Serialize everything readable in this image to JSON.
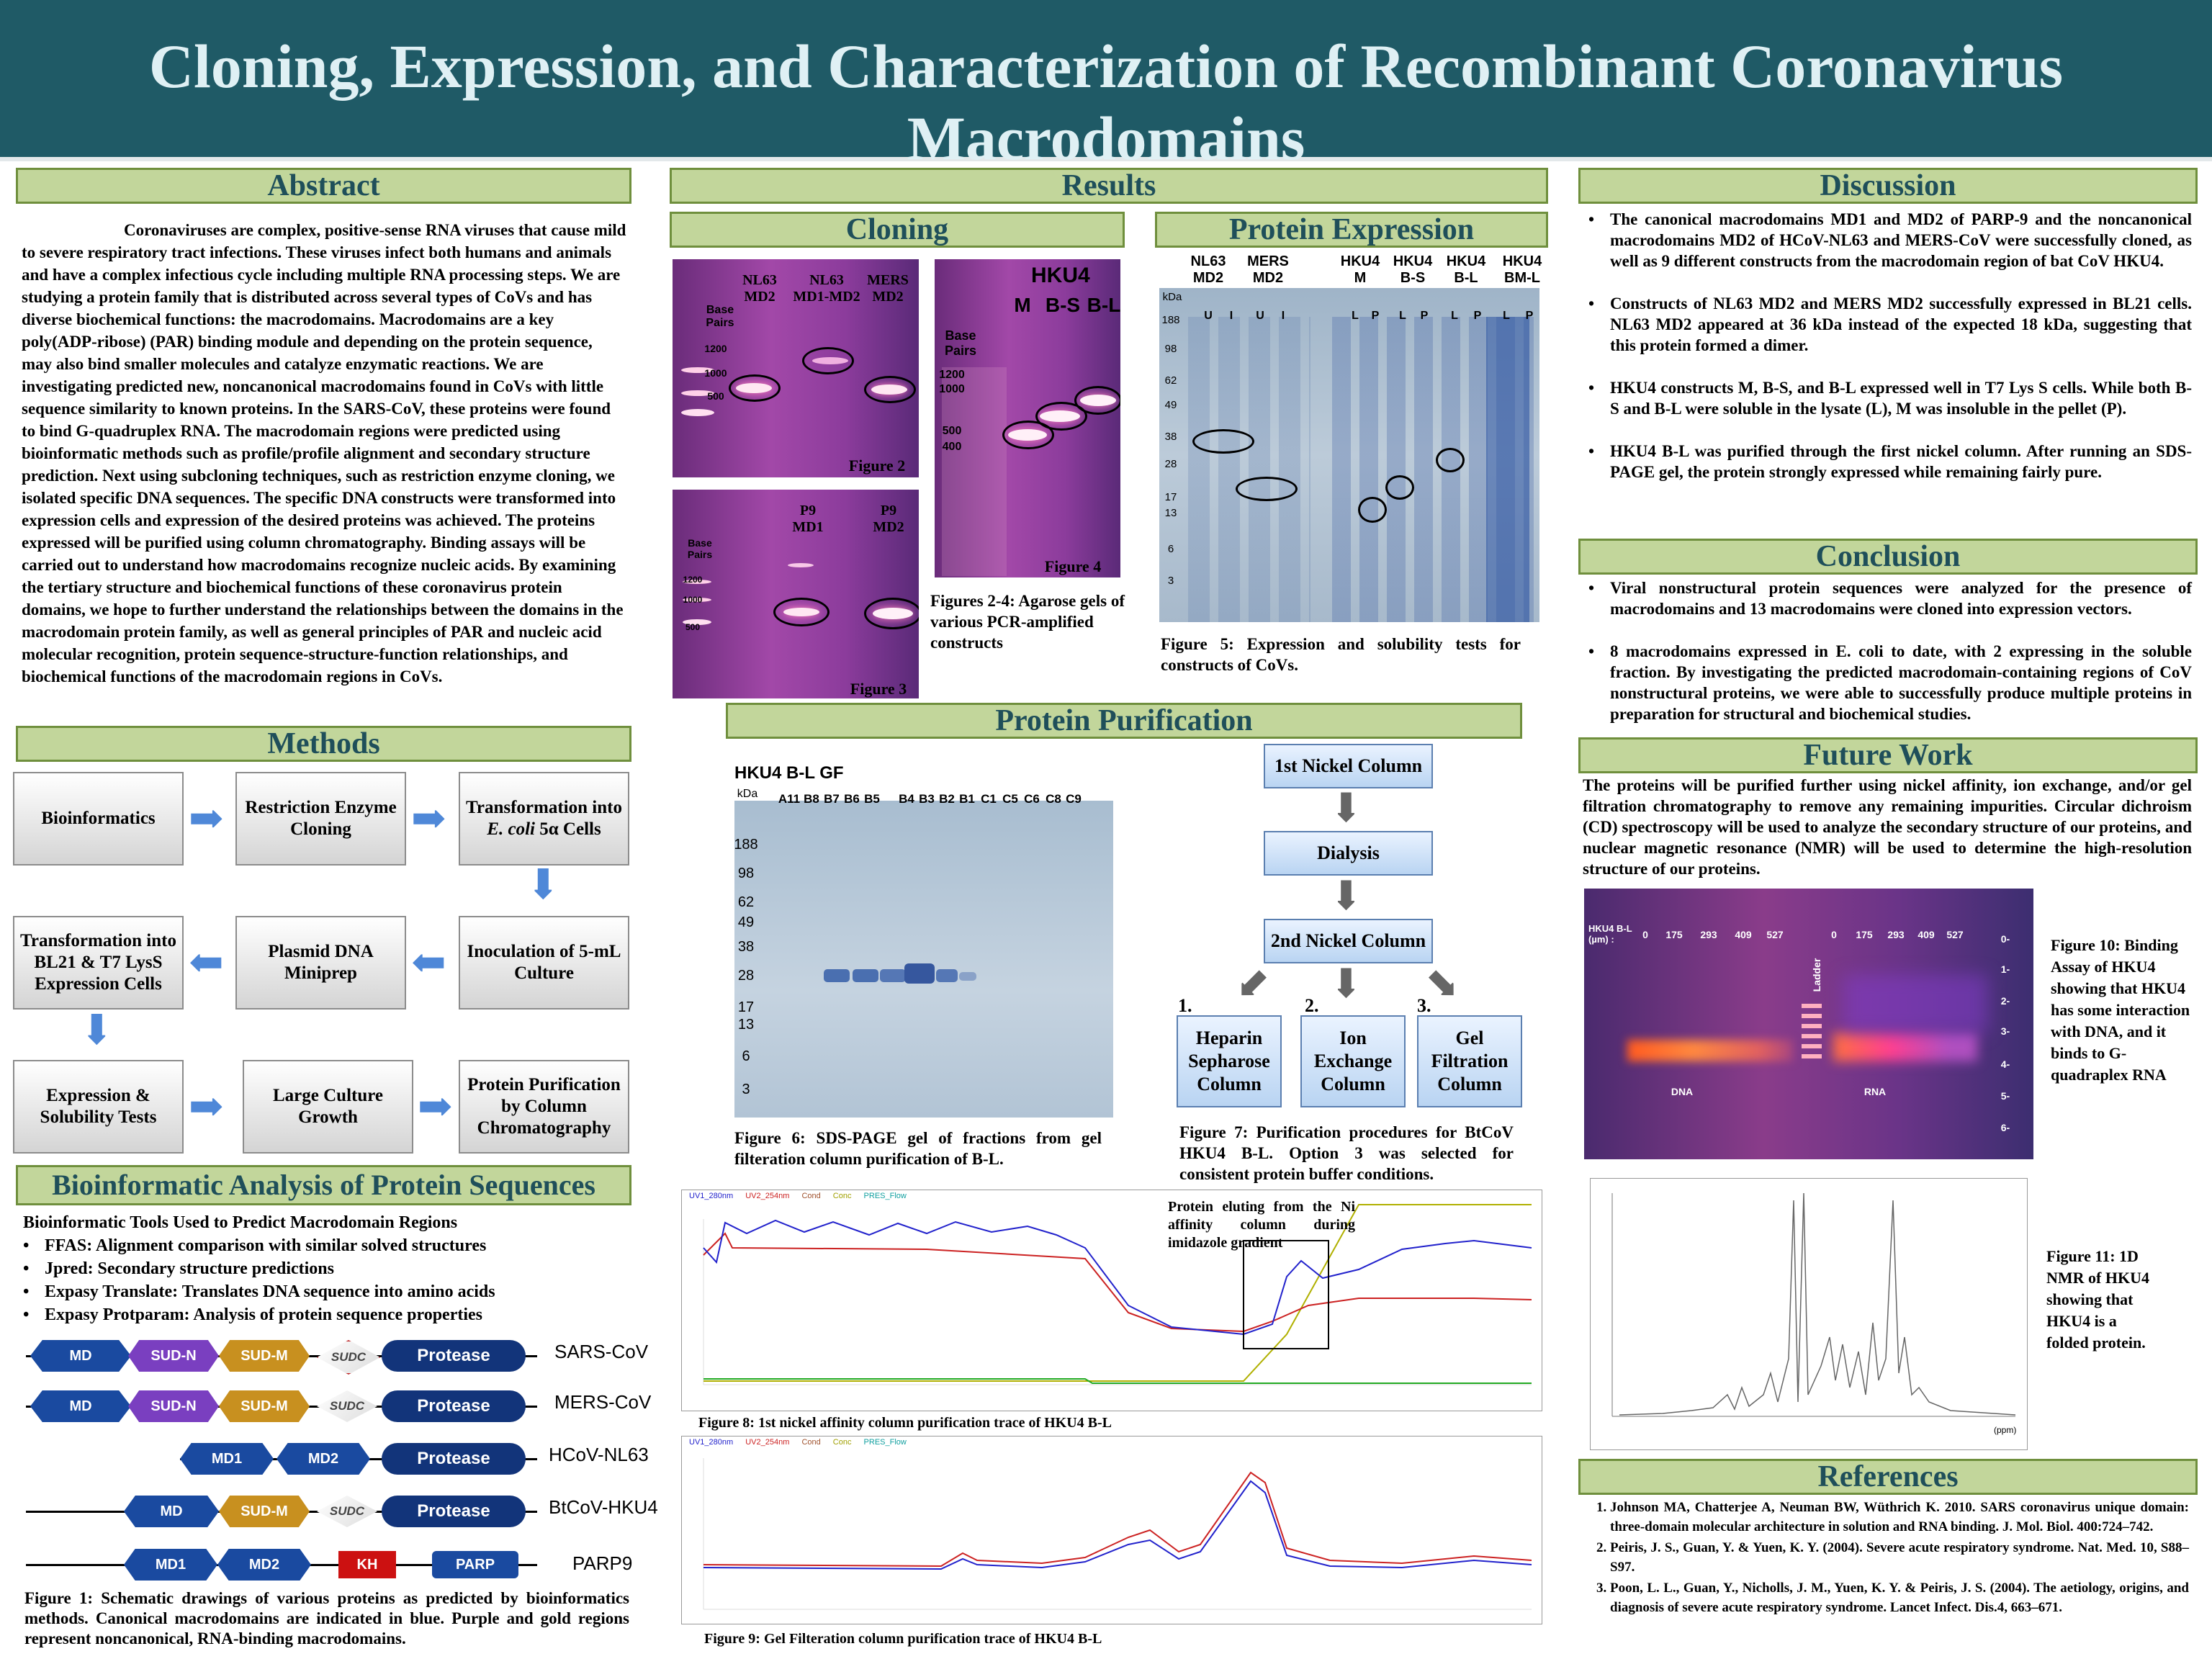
{
  "title": "Cloning, Expression, and Characterization of Recombinant Coronavirus Macrodomains",
  "headers": {
    "abstract": "Abstract",
    "methods": "Methods",
    "bioinfo": "Bioinformatic Analysis of Protein Sequences",
    "results": "Results",
    "cloning": "Cloning",
    "expression": "Protein Expression",
    "purification": "Protein Purification",
    "discussion": "Discussion",
    "conclusion": "Conclusion",
    "future": "Future Work",
    "references": "References"
  },
  "abstract_text": "Coronaviruses are complex, positive-sense RNA viruses that cause mild to severe respiratory tract infections.  These viruses infect both humans and animals and have a complex infectious cycle including multiple RNA processing steps.  We are studying a protein family that is distributed across several types of CoVs and has diverse biochemical functions: the macrodomains.  Macrodomains are a key poly(ADP-ribose) (PAR) binding module and depending on the protein sequence, may also bind smaller molecules and catalyze enzymatic reactions.  We are investigating predicted new, noncanonical macrodomains found in CoVs with little sequence similarity to known proteins.  In the SARS-CoV, these proteins were found to bind G-quadruplex RNA.  The macrodomain regions were predicted using bioinformatic methods such as profile/profile alignment and secondary structure prediction.  Next using subcloning techniques, such as restriction enzyme cloning, we isolated specific DNA sequences. The specific DNA constructs were transformed into expression cells and expression of the desired proteins was achieved. The proteins expressed will be purified using column chromatography. Binding assays will be carried out to understand how macrodomains recognize nucleic acids. By examining the tertiary structure and biochemical functions of these coronavirus protein domains, we hope to further understand the relationships between the domains in the macrodomain protein family, as well as general principles of PAR and nucleic acid molecular recognition, protein sequence-structure-function relationships, and biochemical functions of the macrodomain regions in CoVs.",
  "methods": {
    "bioinformatics": "Bioinformatics",
    "restriction": "Restriction Enzyme Cloning",
    "transformation_a": "Transformation into",
    "transformation_b": "E. coli",
    "transformation_c": "5α Cells",
    "inoculation": "Inoculation of 5-mL Culture",
    "miniprep": "Plasmid DNA Miniprep",
    "bl21": "Transformation into BL21 & T7 LysS Expression Cells",
    "expression": "Expression & Solubility Tests",
    "large": "Large Culture Growth",
    "purification": "Protein Purification by Column Chromatography"
  },
  "bioinfo": {
    "tools_title": "Bioinformatic Tools Used to Predict Macrodomain Regions",
    "tools": [
      "FFAS: Alignment comparison with similar solved structures",
      "Jpred: Secondary structure predictions",
      "Expasy Translate: Translates DNA sequence into amino acids",
      "Expasy Protparam: Analysis of protein sequence properties"
    ],
    "proteins": [
      "SARS-CoV",
      "MERS-CoV",
      "HCoV-NL63",
      "BtCoV-HKU4",
      "PARP9"
    ],
    "domains": {
      "md": "MD",
      "sud_n": "SUD-N",
      "sud_m": "SUD-M",
      "sudc": "SUDC",
      "protease": "Protease",
      "md1": "MD1",
      "md2": "MD2",
      "kh": "KH",
      "parp": "PARP"
    },
    "figure1": "Figure 1: Schematic drawings of various proteins as predicted by bioinformatics methods. Canonical macrodomains are indicated in blue. Purple and gold regions represent noncanonical, RNA-binding macrodomains."
  },
  "cloning": {
    "fig2_lanes": [
      "NL63 MD2",
      "NL63 MD1-MD2",
      "MERS MD2"
    ],
    "base_pairs": "Base Pairs",
    "ladder": [
      "1200",
      "1000",
      "500",
      "400"
    ],
    "fig2": "Figure 2",
    "fig3_lanes": [
      "P9 MD1",
      "P9 MD2"
    ],
    "fig3": "Figure 3",
    "fig4_title": "HKU4",
    "fig4_lanes": [
      "M",
      "B-S",
      "B-L"
    ],
    "fig4": "Figure 4",
    "caption": "Figures 2-4: Agarose gels of various PCR-amplified constructs"
  },
  "expression": {
    "groups": [
      "NL63 MD2",
      "MERS MD2",
      "HKU4 M",
      "HKU4 B-S",
      "HKU4 B-L",
      "HKU4 BM-L"
    ],
    "lane_codes": [
      "U",
      "I",
      "U",
      "I",
      "L",
      "P",
      "L",
      "P",
      "L",
      "P",
      "L",
      "P"
    ],
    "kda": "kDa",
    "markers": [
      "188",
      "98",
      "62",
      "49",
      "38",
      "28",
      "17",
      "13",
      "6",
      "3"
    ],
    "caption": "Figure 5: Expression and solubility tests for constructs of CoVs."
  },
  "purification": {
    "gel_title": "HKU4 B-L GF",
    "fractions": [
      "A11",
      "B8",
      "B7",
      "B6",
      "B5",
      "B4",
      "B3",
      "B2",
      "B1",
      "C1",
      "C5",
      "C6",
      "C8",
      "C9"
    ],
    "fig6": "Figure 6: SDS-PAGE gel of fractions from gel filteration column purification of B-L.",
    "step1": "1st Nickel Column",
    "dialysis": "Dialysis",
    "step2": "2nd Nickel Column",
    "opt1_num": "1.",
    "opt1": "Heparin Sepharose Column",
    "opt2_num": "2.",
    "opt2": "Ion Exchange Column",
    "opt3_num": "3.",
    "opt3": "Gel Filtration Column",
    "fig7": "Figure 7: Purification procedures for BtCoV HKU4 B-L.  Option 3 was selected for consistent protein buffer conditions.",
    "trace_note": "Protein eluting from the Ni affinity column during imidazole gradient",
    "fig8": "Figure 8: 1st nickel affinity column purification trace of HKU4 B-L",
    "fig9": "Figure 9: Gel Filteration column purification trace of HKU4 B-L",
    "legend": [
      "UV1_280nm",
      "UV2_254nm",
      "Cond",
      "Conc",
      "PRES_Flow"
    ]
  },
  "discussion": [
    "The canonical macrodomains MD1 and MD2 of PARP-9 and the noncanonical macrodomains MD2 of HCoV-NL63 and MERS-CoV were successfully cloned, as well as 9 different constructs from the macrodomain region of bat CoV HKU4.",
    "Constructs of NL63 MD2 and MERS MD2 successfully expressed in BL21 cells.  NL63 MD2 appeared at 36 kDa instead of the expected 18 kDa, suggesting that this protein formed a dimer.",
    "HKU4 constructs M, B-S, and B-L expressed well in T7 Lys S cells. While both B-S and B-L were soluble in the lysate (L), M was insoluble in the pellet (P).",
    "HKU4 B-L was purified through the first nickel column. After running an SDS-PAGE gel, the protein strongly expressed while remaining fairly pure."
  ],
  "conclusion": [
    "Viral nonstructural protein sequences were analyzed for the presence of macrodomains and 13 macrodomains were cloned into expression vectors.",
    "8 macrodomains expressed in E. coli to date, with 2 expressing in the soluble fraction. By investigating the predicted macrodomain-containing regions of CoV nonstructural proteins, we were able to successfully produce multiple proteins in preparation for structural and biochemical studies."
  ],
  "future_text": "The proteins will be purified further using nickel affinity, ion exchange, and/or gel filtration chromatography to remove any remaining impurities. Circular dichroism (CD) spectroscopy will be used to analyze the secondary structure of our proteins, and nuclear magnetic resonance (NMR) will be used to determine the high-resolution structure of our proteins.",
  "fig10": {
    "gel_label": "HKU4 B-L (µm) :",
    "concs": [
      "0",
      "175",
      "293",
      "409",
      "527",
      "0",
      "175",
      "293",
      "409",
      "527"
    ],
    "ladder": "Ladder",
    "dna": "DNA",
    "rna": "RNA",
    "scale": [
      "0-",
      "1-",
      "2-",
      "3-",
      "4-",
      "5-",
      "6-"
    ],
    "caption": "Figure 10: Binding Assay of HKU4 showing that HKU4 has some interaction with DNA, and it binds to G-quadraplex RNA"
  },
  "fig11": {
    "caption": "Figure 11: 1D NMR of HKU4 showing that HKU4 is a folded protein.",
    "axis": "(ppm)"
  },
  "references": [
    "Johnson MA, Chatterjee A, Neuman BW, Wüthrich K. 2010. SARS coronavirus unique domain: three-domain molecular architecture in solution and RNA binding. J. Mol. Biol. 400:724–742.",
    "Peiris, J. S., Guan, Y. & Yuen, K. Y. (2004). Severe acute respiratory syndrome. Nat. Med. 10, S88–S97.",
    "Poon, L. L., Guan, Y., Nicholls, J. M., Yuen, K. Y. & Peiris, J. S. (2004). The aetiology, origins, and diagnosis of severe acute respiratory syndrome. Lancet Infect. Dis.4, 663–671."
  ],
  "colors": {
    "title_bg": "#1f5a66",
    "header_bg": "#c2d69b",
    "canonical": "#1a4aa0",
    "noncanonical_purple": "#7a3fc0",
    "noncanonical_gold": "#c8901f"
  }
}
